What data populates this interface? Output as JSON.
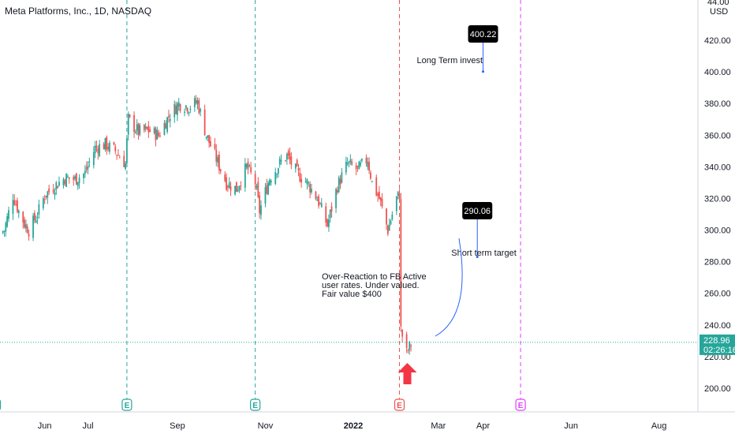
{
  "chart_data": {
    "type": "candlestick",
    "title": "Meta Platforms, Inc., 1D, NASDAQ",
    "currency": "USD",
    "ylim": [
      185,
      444
    ],
    "y_ticks": [
      "420.00",
      "400.00",
      "380.00",
      "360.00",
      "340.00",
      "320.00",
      "300.00",
      "280.00",
      "260.00",
      "240.00",
      "220.00",
      "200.00"
    ],
    "y_tick_values": [
      420,
      400,
      380,
      360,
      340,
      320,
      300,
      280,
      260,
      240,
      220,
      200
    ],
    "top_tick_label": "44.00",
    "x_labels": [
      "Jun",
      "Jul",
      "Sep",
      "Nov",
      "2022",
      "Mar",
      "Apr",
      "Jun",
      "Aug"
    ],
    "x_label_dates": [
      "2021-06-01",
      "2021-07-01",
      "2021-09-01",
      "2021-11-01",
      "2022-01-01",
      "2022-03-01",
      "2022-04-01",
      "2022-06-01",
      "2022-08-01"
    ],
    "x_bold_label": "2022",
    "x_range": [
      "2021-05-01",
      "2022-08-28"
    ],
    "last_price": "228.96",
    "countdown": "02:26:16",
    "last_price_value": 228.96,
    "earnings_dates": [
      "2021-04-28",
      "2021-07-28",
      "2021-10-25",
      "2022-02-02",
      "2022-04-27"
    ],
    "earnings_label": "E",
    "close_series": {
      "start": "2021-05-01",
      "note": "daily closes approx.",
      "waypoints": [
        [
          "2021-05-01",
          298
        ],
        [
          "2021-05-04",
          300
        ],
        [
          "2021-05-10",
          322
        ],
        [
          "2021-05-14",
          312
        ],
        [
          "2021-05-18",
          304
        ],
        [
          "2021-05-21",
          300
        ],
        [
          "2021-05-27",
          310
        ],
        [
          "2021-06-01",
          322
        ],
        [
          "2021-06-08",
          328
        ],
        [
          "2021-06-15",
          333
        ],
        [
          "2021-06-22",
          332
        ],
        [
          "2021-06-29",
          336
        ],
        [
          "2021-07-06",
          352
        ],
        [
          "2021-07-13",
          354
        ],
        [
          "2021-07-20",
          350
        ],
        [
          "2021-07-27",
          342
        ],
        [
          "2021-07-29",
          370
        ],
        [
          "2021-08-05",
          362
        ],
        [
          "2021-08-12",
          363
        ],
        [
          "2021-08-19",
          360
        ],
        [
          "2021-08-26",
          372
        ],
        [
          "2021-09-02",
          380
        ],
        [
          "2021-09-09",
          378
        ],
        [
          "2021-09-15",
          381
        ],
        [
          "2021-09-21",
          360
        ],
        [
          "2021-09-28",
          345
        ],
        [
          "2021-10-05",
          330
        ],
        [
          "2021-10-12",
          326
        ],
        [
          "2021-10-19",
          340
        ],
        [
          "2021-10-25",
          330
        ],
        [
          "2021-10-28",
          312
        ],
        [
          "2021-11-04",
          333
        ],
        [
          "2021-11-11",
          342
        ],
        [
          "2021-11-16",
          347
        ],
        [
          "2021-11-23",
          336
        ],
        [
          "2021-11-30",
          330
        ],
        [
          "2021-12-07",
          320
        ],
        [
          "2021-12-14",
          303
        ],
        [
          "2021-12-21",
          328
        ],
        [
          "2021-12-28",
          342
        ],
        [
          "2022-01-04",
          338
        ],
        [
          "2022-01-11",
          345
        ],
        [
          "2022-01-14",
          330
        ],
        [
          "2022-01-19",
          320
        ],
        [
          "2022-01-25",
          300
        ],
        [
          "2022-01-31",
          320
        ],
        [
          "2022-02-02",
          323
        ],
        [
          "2022-02-03",
          237
        ],
        [
          "2022-02-07",
          222
        ],
        [
          "2022-02-10",
          228
        ]
      ]
    },
    "annotations": {
      "long_term_callout": "400.22",
      "long_term_label": "Long Term invest",
      "short_term_callout": "290.06",
      "short_term_label": "Short term target",
      "note_lines": [
        "Over-Reaction to FB Active",
        "user rates. Under valued.",
        "Fair value $400"
      ],
      "long_term_value": 400.22,
      "short_term_value": 290.06,
      "long_term_date": "2022-04-01",
      "short_term_date": "2022-03-28"
    },
    "colors": {
      "up": "#26a69a",
      "down": "#ef5350",
      "earnings_line": "#26a69a",
      "current_line": "#ef5350",
      "future_line": "#e040fb",
      "price_line": "#26a69a",
      "callout_bg": "#000000",
      "arrow": "#f23645",
      "curve": "#2962ff"
    }
  }
}
